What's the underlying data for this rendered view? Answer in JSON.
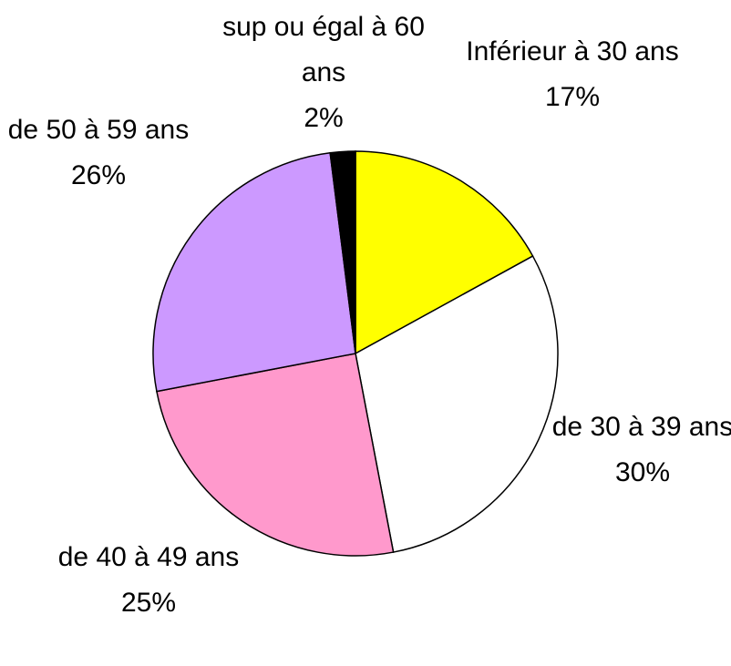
{
  "chart_data": {
    "type": "pie",
    "categories": [
      "Inférieur à 30 ans",
      "de 30 à 39 ans",
      "de 40 à 49 ans",
      "de 50 à 59 ans",
      "sup ou égal à 60 ans"
    ],
    "values": [
      17,
      30,
      25,
      26,
      2
    ],
    "value_labels": [
      "17%",
      "30%",
      "25%",
      "26%",
      "2%"
    ],
    "colors": [
      "#ffff00",
      "#ffffff",
      "#ff99cc",
      "#cc99ff",
      "#000000"
    ]
  }
}
